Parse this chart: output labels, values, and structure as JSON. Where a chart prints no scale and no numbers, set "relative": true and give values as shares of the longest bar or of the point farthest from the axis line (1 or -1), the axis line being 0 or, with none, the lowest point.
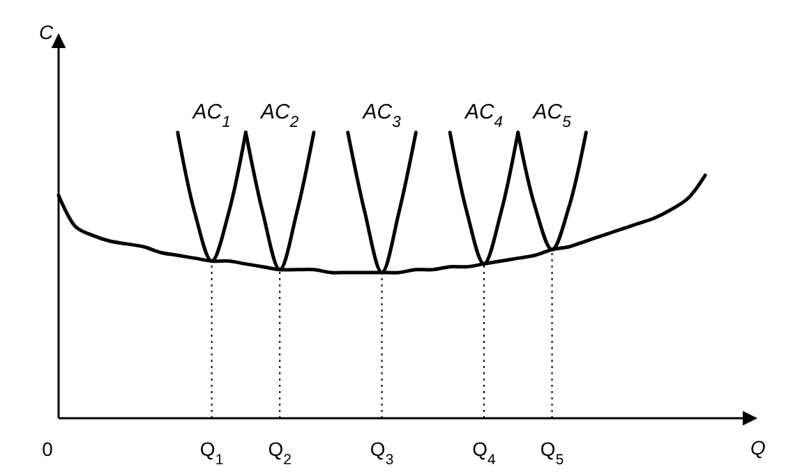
{
  "chart_data": {
    "type": "line",
    "relative": true,
    "xlabel": "Q",
    "ylabel": "C",
    "tick_labels": "x",
    "categories": [
      "0",
      null,
      null,
      null,
      null,
      null,
      null,
      null,
      null,
      "Q$_{1}$",
      null,
      null,
      null,
      "Q$_{2}$",
      null,
      null,
      null,
      null,
      null,
      "Q$_{3}$",
      null,
      null,
      null,
      null,
      null,
      "Q$_{4}$",
      null,
      null,
      null,
      "Q$_{5}$",
      null,
      null,
      null,
      null,
      null,
      null,
      null,
      null,
      null,
      null,
      null
    ],
    "ref_lines": [
      {
        "axis": "x",
        "value": "Q$_{1}$",
        "line_style": "dotted"
      },
      {
        "axis": "x",
        "value": "Q$_{2}$",
        "line_style": "dotted"
      },
      {
        "axis": "x",
        "value": "Q$_{3}$",
        "line_style": "dotted"
      },
      {
        "axis": "x",
        "value": "Q$_{4}$",
        "line_style": "dotted"
      },
      {
        "axis": "x",
        "value": "Q$_{5}$",
        "line_style": "dotted"
      }
    ],
    "series": [
      {
        "color": "#000000",
        "values": [
          0.78,
          0.67,
          0.64,
          0.62,
          0.61,
          0.6,
          0.58,
          0.57,
          0.56,
          0.55,
          0.55,
          0.54,
          0.53,
          0.52,
          0.52,
          0.52,
          0.51,
          0.51,
          0.51,
          0.51,
          0.51,
          0.52,
          0.52,
          0.53,
          0.53,
          0.54,
          0.55,
          0.56,
          0.57,
          0.59,
          0.6,
          0.62,
          0.64,
          0.66,
          0.68,
          0.7,
          0.73,
          0.77,
          0.85,
          null,
          null
        ]
      },
      {
        "name": "AC$_{1}$",
        "color": "#000000",
        "values": [
          null,
          null,
          null,
          null,
          null,
          null,
          null,
          1.0,
          0.72,
          0.55,
          0.72,
          1.0,
          null,
          null,
          null,
          null,
          null,
          null,
          null,
          null,
          null,
          null,
          null,
          null,
          null,
          null,
          null,
          null,
          null,
          null,
          null,
          null,
          null,
          null,
          null,
          null,
          null,
          null,
          null,
          null,
          null
        ]
      },
      {
        "name": "AC$_{2}$",
        "color": "#000000",
        "values": [
          null,
          null,
          null,
          null,
          null,
          null,
          null,
          null,
          null,
          null,
          null,
          1.0,
          0.72,
          0.52,
          0.72,
          1.0,
          null,
          null,
          null,
          null,
          null,
          null,
          null,
          null,
          null,
          null,
          null,
          null,
          null,
          null,
          null,
          null,
          null,
          null,
          null,
          null,
          null,
          null,
          null,
          null,
          null
        ]
      },
      {
        "name": "AC$_{3}$",
        "color": "#000000",
        "values": [
          null,
          null,
          null,
          null,
          null,
          null,
          null,
          null,
          null,
          null,
          null,
          null,
          null,
          null,
          null,
          null,
          null,
          1.0,
          0.72,
          0.51,
          0.72,
          1.0,
          null,
          null,
          null,
          null,
          null,
          null,
          null,
          null,
          null,
          null,
          null,
          null,
          null,
          null,
          null,
          null,
          null,
          null,
          null
        ]
      },
      {
        "name": "AC$_{4}$",
        "color": "#000000",
        "values": [
          null,
          null,
          null,
          null,
          null,
          null,
          null,
          null,
          null,
          null,
          null,
          null,
          null,
          null,
          null,
          null,
          null,
          null,
          null,
          null,
          null,
          null,
          null,
          1.0,
          0.72,
          0.54,
          0.72,
          1.0,
          null,
          null,
          null,
          null,
          null,
          null,
          null,
          null,
          null,
          null,
          null,
          null,
          null
        ]
      },
      {
        "name": "AC$_{5}$",
        "color": "#000000",
        "values": [
          null,
          null,
          null,
          null,
          null,
          null,
          null,
          null,
          null,
          null,
          null,
          null,
          null,
          null,
          null,
          null,
          null,
          null,
          null,
          null,
          null,
          null,
          null,
          null,
          null,
          null,
          null,
          1.0,
          0.74,
          0.59,
          0.74,
          1.0,
          null,
          null,
          null,
          null,
          null,
          null,
          null,
          null,
          null
        ]
      }
    ]
  }
}
